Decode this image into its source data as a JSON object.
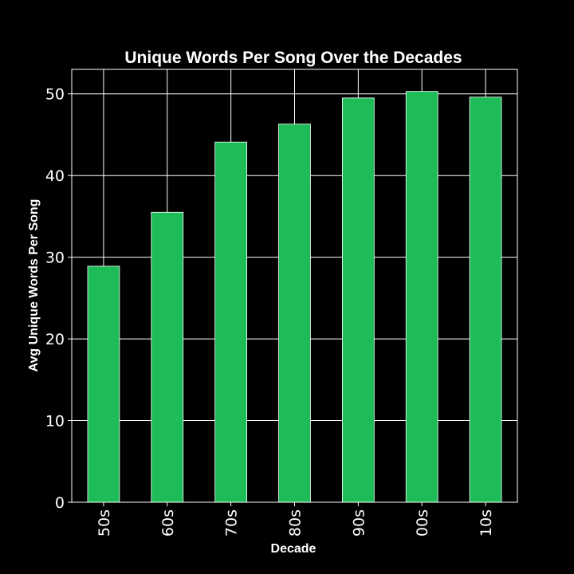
{
  "chart_data": {
    "type": "bar",
    "title": "Unique Words Per Song Over the Decades",
    "xlabel": "Decade",
    "ylabel": "Avg Unique Words Per Song",
    "categories": [
      "50s",
      "60s",
      "70s",
      "80s",
      "90s",
      "00s",
      "10s"
    ],
    "values": [
      28.9,
      35.5,
      44.1,
      46.3,
      49.5,
      50.3,
      49.6
    ],
    "ylim": [
      0,
      53
    ],
    "yticks": [
      0,
      10,
      20,
      30,
      40,
      50
    ],
    "grid": true,
    "legend": "none",
    "colors": {
      "bar": "#1ebc59",
      "bar_edge": "#ffffff",
      "background": "#000000",
      "text": "#ffffff",
      "grid": "#ffffff"
    }
  }
}
